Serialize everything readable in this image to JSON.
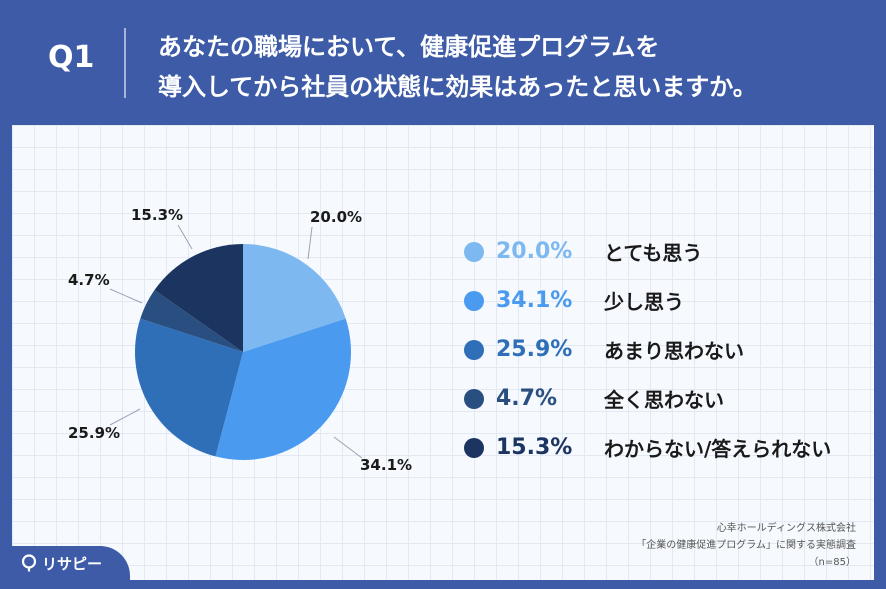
{
  "header": {
    "q_label": "Q1",
    "question_line1": "あなたの職場において、健康促進プログラムを",
    "question_line2": "導入してから社員の状態に効果はあったと思いますか。"
  },
  "chart_data": {
    "type": "pie",
    "categories": [
      "とても思う",
      "少し思う",
      "あまり思わない",
      "全く思わない",
      "わからない/答えられない"
    ],
    "values": [
      20.0,
      34.1,
      25.9,
      4.7,
      15.3
    ],
    "value_labels": [
      "20.0%",
      "34.1%",
      "25.9%",
      "4.7%",
      "15.3%"
    ],
    "colors": [
      "#7db9f0",
      "#4a9af0",
      "#2f6fb8",
      "#294f80",
      "#1c3460"
    ],
    "start": "12 o'clock, clockwise",
    "legend_position": "right"
  },
  "source": {
    "line1": "心幸ホールディングス株式会社",
    "line2": "「企業の健康促進プログラム」に関する実態調査",
    "line3": "（n=85）"
  },
  "logo": {
    "text": "リサピー",
    "icon": "pin-icon"
  }
}
